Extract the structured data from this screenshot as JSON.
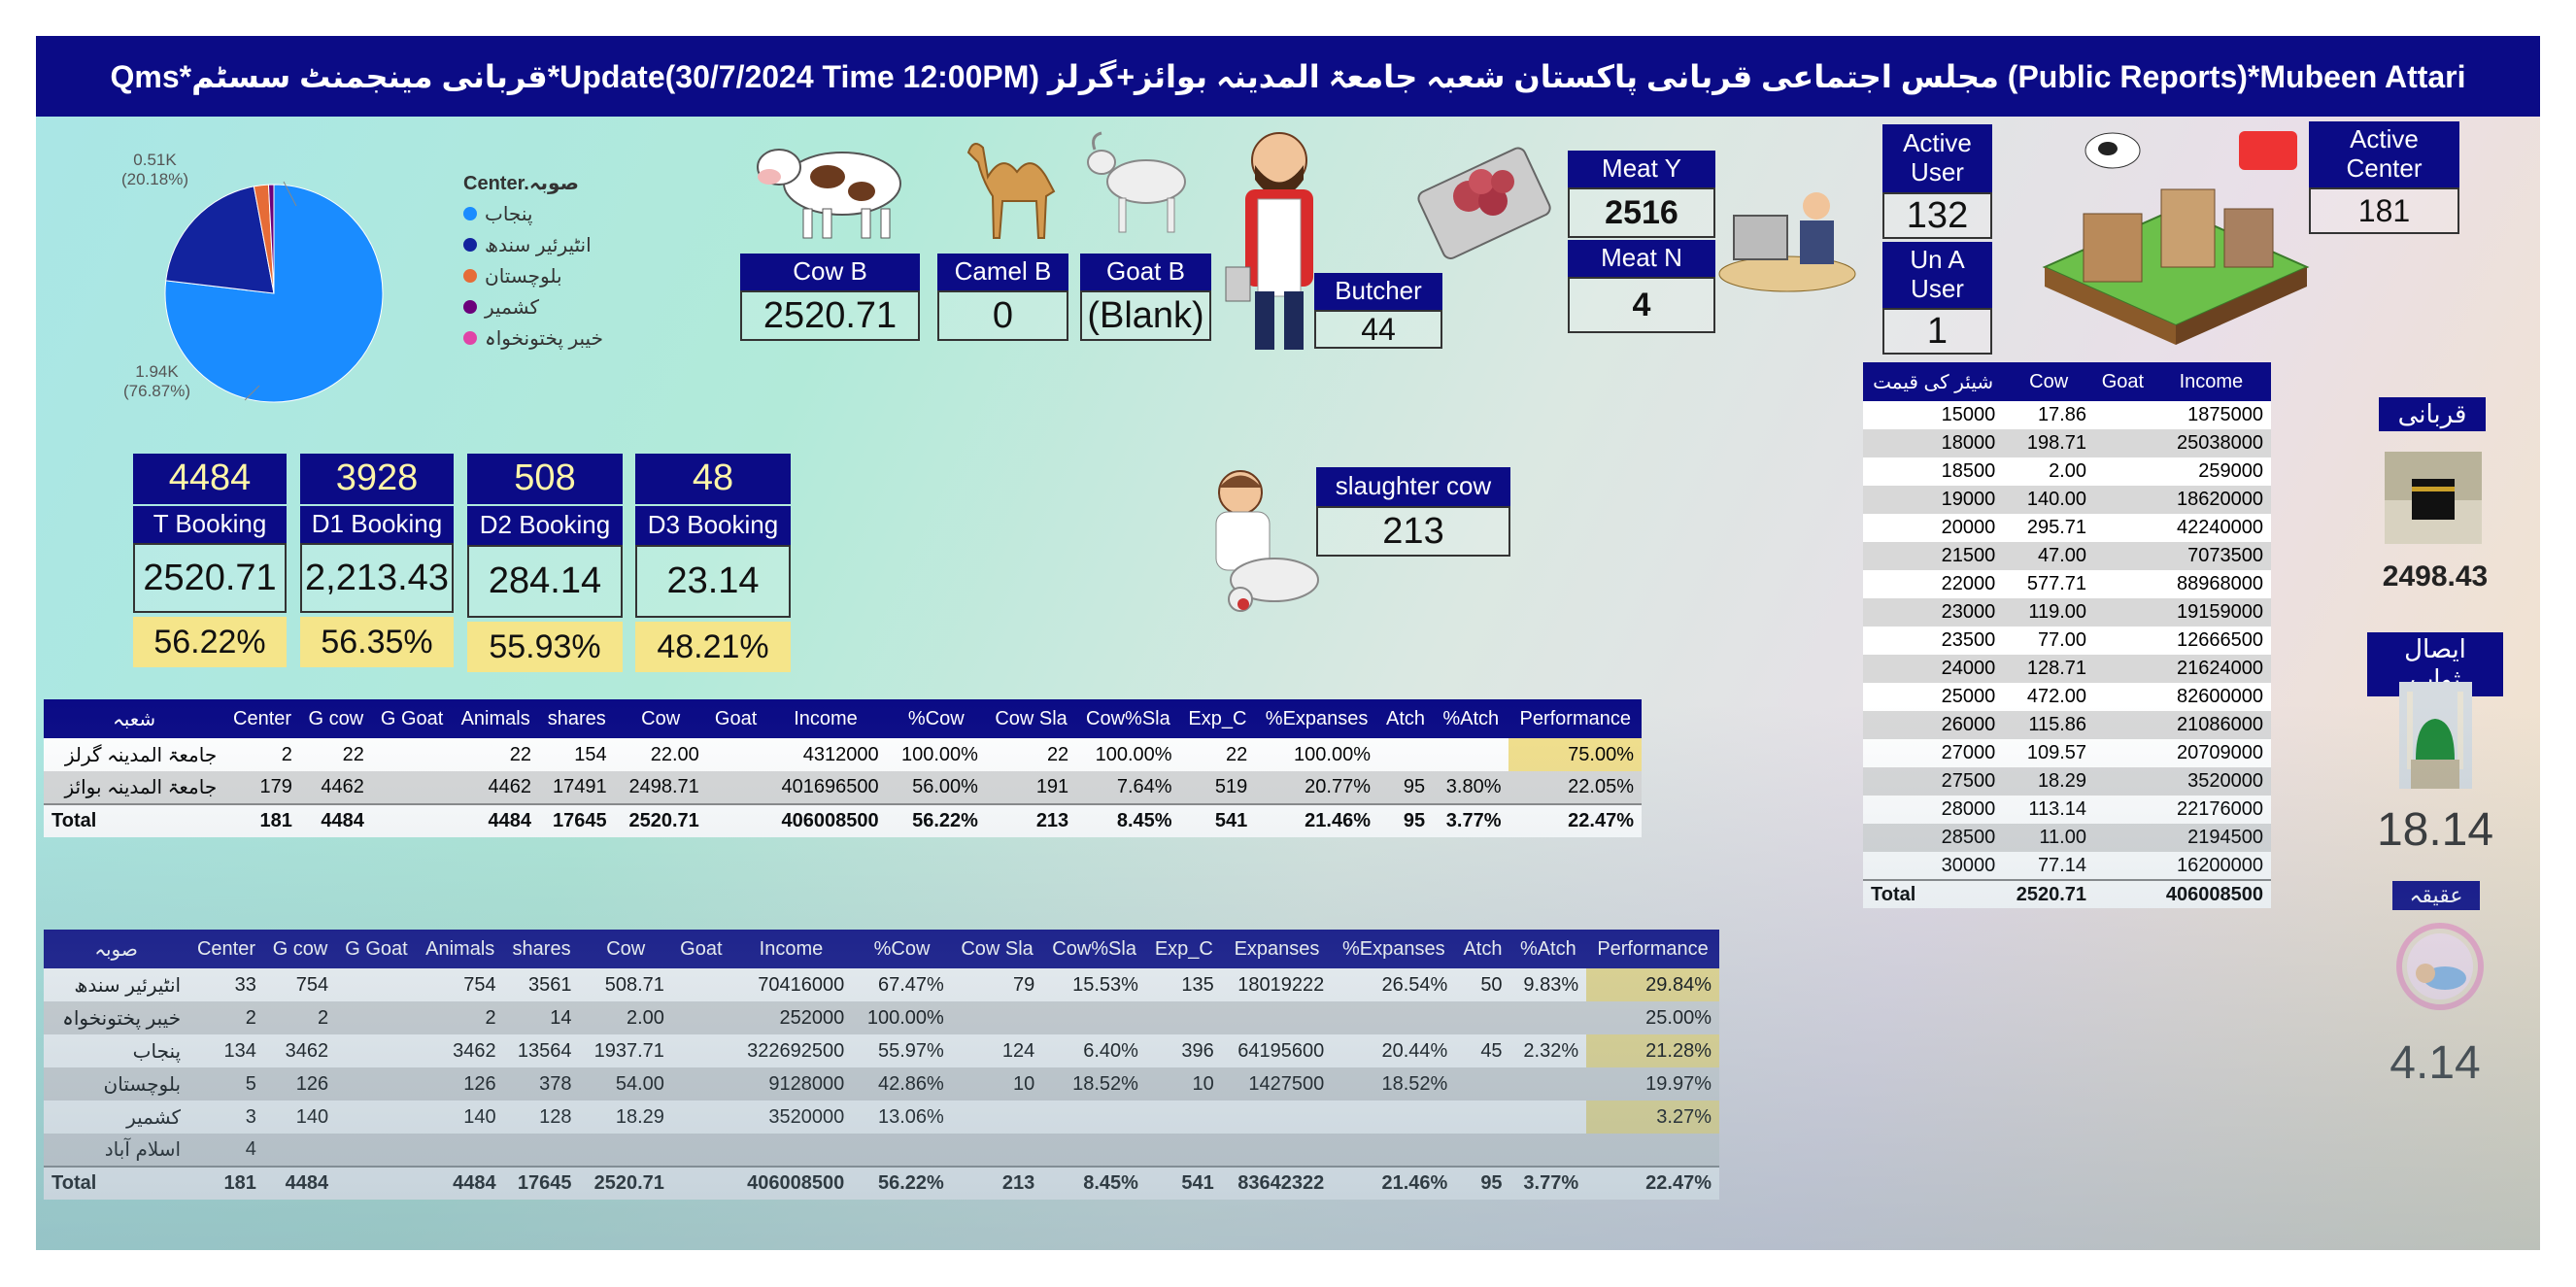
{
  "header": {
    "title": "Qms*قربانی مینجمنٹ سسٹم*Update(30/7/2024 Time 12:00PM)  مجلس اجتماعی قربانی پاکستان شعبہ جامعۃ المدینہ بوائز+گرلز (Public Reports)*Mubeen Attari"
  },
  "pie": {
    "legend_title": "Center.صوبہ",
    "label_small": "0.51K",
    "label_small_pct": "(20.18%)",
    "label_big": "1.94K",
    "label_big_pct": "(76.87%)",
    "items": [
      {
        "label": "پنجاب",
        "color": "#1a8cff"
      },
      {
        "label": "انٹیرئیر سندھ",
        "color": "#12239e"
      },
      {
        "label": "بلوچستان",
        "color": "#e66c37"
      },
      {
        "label": "کشمیر",
        "color": "#6b007b"
      },
      {
        "label": "خیبر پختونخواہ",
        "color": "#e044a7"
      }
    ],
    "slices": [
      76.87,
      20.18,
      2.16,
      0.79,
      0.0
    ]
  },
  "animals": {
    "cow": {
      "label": "Cow B",
      "value": "2520.71"
    },
    "camel": {
      "label": "Camel B",
      "value": "0"
    },
    "goat": {
      "label": "Goat B",
      "value": "(Blank)"
    },
    "butcher": {
      "label": "Butcher",
      "value": "44"
    },
    "meat_y": {
      "label": "Meat Y",
      "value": "2516"
    },
    "meat_n": {
      "label": "Meat N",
      "value": "4"
    },
    "active_user": {
      "label": "Active User",
      "value": "132"
    },
    "una_user": {
      "label": "Un A User",
      "value": "1"
    },
    "active_center": {
      "label": "Active Center",
      "value": "181"
    },
    "slaughter": {
      "label": "slaughter cow",
      "value": "213"
    }
  },
  "bookings": [
    {
      "top": "4484",
      "label": "T Booking",
      "value": "2520.71",
      "pct": "56.22%"
    },
    {
      "top": "3928",
      "label": "D1 Booking",
      "value": "2,213.43",
      "pct": "56.35%"
    },
    {
      "top": "508",
      "label": "D2 Booking",
      "value": "284.14",
      "pct": "55.93%"
    },
    {
      "top": "48",
      "label": "D3 Booking",
      "value": "23.14",
      "pct": "48.21%"
    }
  ],
  "shoba_table": {
    "headers": [
      "شعبہ",
      "Center",
      "G cow",
      "G Goat",
      "Animals",
      "shares",
      "Cow",
      "Goat",
      "Income",
      "%Cow",
      "Cow Sla",
      "Cow%Sla",
      "Exp_C",
      "%Expanses",
      "Atch",
      "%Atch",
      "Performance"
    ],
    "rows": [
      [
        "جامعۃ المدینہ گرلز",
        "2",
        "22",
        "",
        "22",
        "154",
        "22.00",
        "",
        "4312000",
        "100.00%",
        "22",
        "100.00%",
        "22",
        "100.00%",
        "",
        "",
        "75.00%"
      ],
      [
        "جامعۃ المدینہ بوائز",
        "179",
        "4462",
        "",
        "4462",
        "17491",
        "2498.71",
        "",
        "401696500",
        "56.00%",
        "191",
        "7.64%",
        "519",
        "20.77%",
        "95",
        "3.80%",
        "22.05%"
      ]
    ],
    "total": [
      "Total",
      "181",
      "4484",
      "",
      "4484",
      "17645",
      "2520.71",
      "",
      "406008500",
      "56.22%",
      "213",
      "8.45%",
      "541",
      "21.46%",
      "95",
      "3.77%",
      "22.47%"
    ]
  },
  "province_table": {
    "headers": [
      "صوبہ",
      "Center",
      "G cow",
      "G Goat",
      "Animals",
      "shares",
      "Cow",
      "Goat",
      "Income",
      "%Cow",
      "Cow Sla",
      "Cow%Sla",
      "Exp_C",
      "Expanses",
      "%Expanses",
      "Atch",
      "%Atch",
      "Performance"
    ],
    "rows": [
      [
        "انٹیرئیر سندھ",
        "33",
        "754",
        "",
        "754",
        "3561",
        "508.71",
        "",
        "70416000",
        "67.47%",
        "79",
        "15.53%",
        "135",
        "18019222",
        "26.54%",
        "50",
        "9.83%",
        "29.84%"
      ],
      [
        "خیبر پختونخواہ",
        "2",
        "2",
        "",
        "2",
        "14",
        "2.00",
        "",
        "252000",
        "100.00%",
        "",
        "",
        "",
        "",
        "",
        "",
        "",
        "25.00%"
      ],
      [
        "پنجاب",
        "134",
        "3462",
        "",
        "3462",
        "13564",
        "1937.71",
        "",
        "322692500",
        "55.97%",
        "124",
        "6.40%",
        "396",
        "64195600",
        "20.44%",
        "45",
        "2.32%",
        "21.28%"
      ],
      [
        "بلوچستان",
        "5",
        "126",
        "",
        "126",
        "378",
        "54.00",
        "",
        "9128000",
        "42.86%",
        "10",
        "18.52%",
        "10",
        "1427500",
        "18.52%",
        "",
        "",
        "19.97%"
      ],
      [
        "کشمیر",
        "3",
        "140",
        "",
        "140",
        "128",
        "18.29",
        "",
        "3520000",
        "13.06%",
        "",
        "",
        "",
        "",
        "",
        "",
        "",
        "3.27%"
      ],
      [
        "اسلام آباد",
        "4",
        "",
        "",
        "",
        "",
        "",
        "",
        "",
        "",
        "",
        "",
        "",
        "",
        "",
        "",
        "",
        ""
      ]
    ],
    "total": [
      "Total",
      "181",
      "4484",
      "",
      "4484",
      "17645",
      "2520.71",
      "",
      "406008500",
      "56.22%",
      "213",
      "8.45%",
      "541",
      "83642322",
      "21.46%",
      "95",
      "3.77%",
      "22.47%"
    ]
  },
  "price_table": {
    "headers": [
      "شیئر کی قیمت",
      "Cow",
      "Goat",
      "Income"
    ],
    "rows": [
      [
        "15000",
        "17.86",
        "",
        "1875000"
      ],
      [
        "18000",
        "198.71",
        "",
        "25038000"
      ],
      [
        "18500",
        "2.00",
        "",
        "259000"
      ],
      [
        "19000",
        "140.00",
        "",
        "18620000"
      ],
      [
        "20000",
        "295.71",
        "",
        "42240000"
      ],
      [
        "21500",
        "47.00",
        "",
        "7073500"
      ],
      [
        "22000",
        "577.71",
        "",
        "88968000"
      ],
      [
        "23000",
        "119.00",
        "",
        "19159000"
      ],
      [
        "23500",
        "77.00",
        "",
        "12666500"
      ],
      [
        "24000",
        "128.71",
        "",
        "21624000"
      ],
      [
        "25000",
        "472.00",
        "",
        "82600000"
      ],
      [
        "26000",
        "115.86",
        "",
        "21086000"
      ],
      [
        "27000",
        "109.57",
        "",
        "20709000"
      ],
      [
        "27500",
        "18.29",
        "",
        "3520000"
      ],
      [
        "28000",
        "113.14",
        "",
        "22176000"
      ],
      [
        "28500",
        "11.00",
        "",
        "2194500"
      ],
      [
        "30000",
        "77.14",
        "",
        "16200000"
      ]
    ],
    "total": [
      "Total",
      "2520.71",
      "",
      "406008500"
    ]
  },
  "side": {
    "qurbani_label": "قربانی",
    "qurbani_value": "2498.43",
    "esal_label": "ایصال ثواب",
    "esal_value": "18.14",
    "aqeeqa_label": "عقیقہ",
    "aqeeqa_value": "4.14"
  }
}
